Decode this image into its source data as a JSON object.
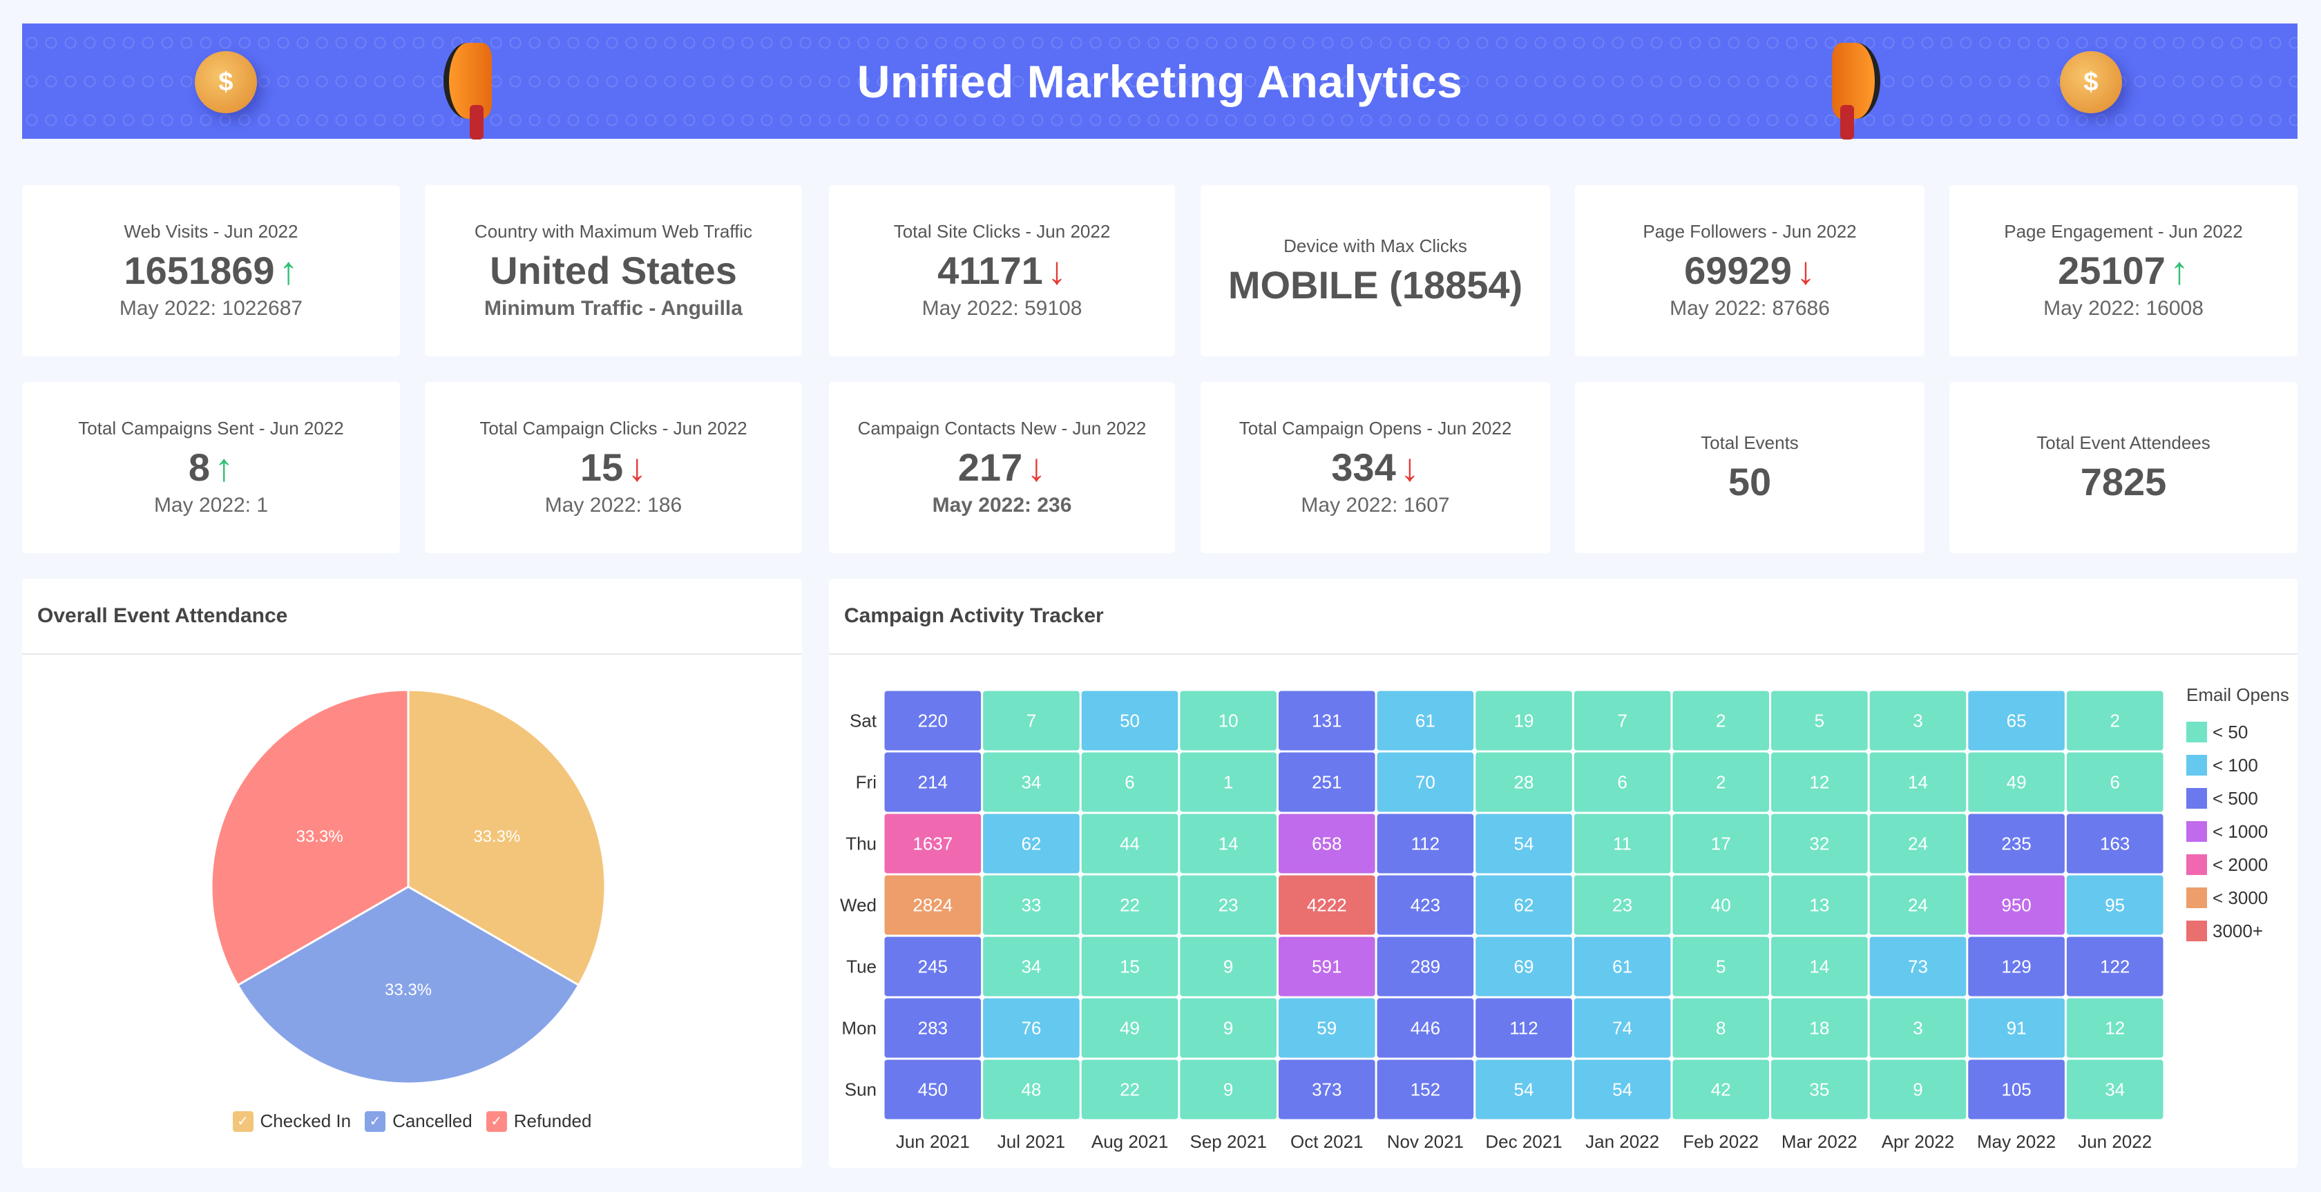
{
  "header": {
    "title": "Unified Marketing Analytics"
  },
  "kpis_row1": [
    {
      "title": "Web Visits - Jun 2022",
      "value": "1651869",
      "trend": "up",
      "sub": "May 2022: 1022687"
    },
    {
      "title": "Country with Maximum Web Traffic",
      "value": "United States",
      "trend": "",
      "sub": "Minimum Traffic - Anguilla"
    },
    {
      "title": "Total Site Clicks - Jun 2022",
      "value": "41171",
      "trend": "down",
      "sub": "May 2022: 59108"
    },
    {
      "title": "Device with Max Clicks",
      "value": "MOBILE (18854)",
      "trend": "",
      "sub": ""
    },
    {
      "title": "Page Followers - Jun 2022",
      "value": "69929",
      "trend": "down",
      "sub": "May 2022: 87686"
    },
    {
      "title": "Page Engagement - Jun 2022",
      "value": "25107",
      "trend": "up",
      "sub": "May 2022: 16008"
    }
  ],
  "kpis_row2": [
    {
      "title": "Total Campaigns Sent - Jun 2022",
      "value": "8",
      "trend": "up",
      "sub": "May 2022: 1"
    },
    {
      "title": "Total Campaign Clicks - Jun 2022",
      "value": "15",
      "trend": "down",
      "sub": "May 2022: 186"
    },
    {
      "title": "Campaign Contacts New - Jun 2022",
      "value": "217",
      "trend": "down",
      "sub": "May 2022: 236"
    },
    {
      "title": "Total Campaign Opens - Jun 2022",
      "value": "334",
      "trend": "down",
      "sub": "May 2022: 1607"
    },
    {
      "title": "Total Events",
      "value": "50",
      "trend": "",
      "sub": ""
    },
    {
      "title": "Total Event Attendees",
      "value": "7825",
      "trend": "",
      "sub": ""
    }
  ],
  "icons": {
    "up": "↑",
    "down": "↓",
    "check": "✓"
  },
  "chart_data": [
    {
      "type": "pie",
      "title": "Overall Event Attendance",
      "slices": [
        {
          "label": "Checked In",
          "value": 33.3,
          "color": "#F3C57A"
        },
        {
          "label": "Cancelled",
          "value": 33.3,
          "color": "#87A3E8"
        },
        {
          "label": "Refunded",
          "value": 33.3,
          "color": "#FF8A85"
        }
      ],
      "legend": "bottom"
    },
    {
      "type": "heatmap",
      "title": "Campaign Activity Tracker",
      "x": [
        "Jun 2021",
        "Jul 2021",
        "Aug 2021",
        "Sep 2021",
        "Oct 2021",
        "Nov 2021",
        "Dec 2021",
        "Jan 2022",
        "Feb 2022",
        "Mar 2022",
        "Apr 2022",
        "May 2022",
        "Jun 2022"
      ],
      "y": [
        "Sat",
        "Fri",
        "Thu",
        "Wed",
        "Tue",
        "Mon",
        "Sun"
      ],
      "values": [
        [
          220,
          7,
          50,
          10,
          131,
          61,
          19,
          7,
          2,
          5,
          3,
          65,
          2
        ],
        [
          214,
          34,
          6,
          1,
          251,
          70,
          28,
          6,
          2,
          12,
          14,
          49,
          6
        ],
        [
          1637,
          62,
          44,
          14,
          658,
          112,
          54,
          11,
          17,
          32,
          24,
          235,
          163
        ],
        [
          2824,
          33,
          22,
          23,
          4222,
          423,
          62,
          23,
          40,
          13,
          24,
          950,
          95
        ],
        [
          245,
          34,
          15,
          9,
          591,
          289,
          69,
          61,
          5,
          14,
          73,
          129,
          122
        ],
        [
          283,
          76,
          49,
          9,
          59,
          446,
          112,
          74,
          8,
          18,
          3,
          91,
          12
        ],
        [
          450,
          48,
          22,
          9,
          373,
          152,
          54,
          54,
          42,
          35,
          9,
          105,
          34
        ]
      ],
      "legend_title": "Email Opens",
      "legend": "right",
      "bins": [
        {
          "label": "< 50",
          "max": 50,
          "color": "#72E3C5"
        },
        {
          "label": "< 100",
          "max": 100,
          "color": "#65C8EE"
        },
        {
          "label": "< 500",
          "max": 500,
          "color": "#6A79EE"
        },
        {
          "label": "< 1000",
          "max": 1000,
          "color": "#C06BEB"
        },
        {
          "label": "< 2000",
          "max": 2000,
          "color": "#F068B0"
        },
        {
          "label": "< 3000",
          "max": 3000,
          "color": "#ED9E6A"
        },
        {
          "label": "3000+",
          "max": null,
          "color": "#EA6F6F"
        }
      ]
    }
  ]
}
